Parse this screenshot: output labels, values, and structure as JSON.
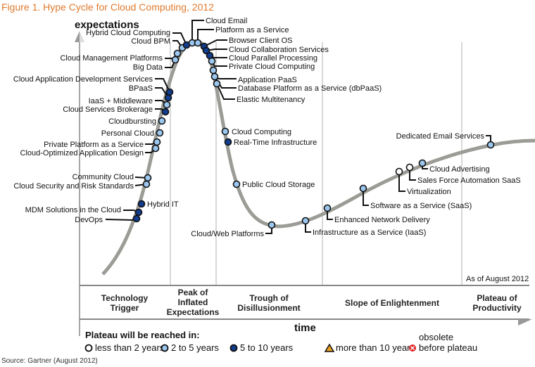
{
  "title": "Figure 1. Hype Cycle for Cloud Computing, 2012",
  "source": "Source: Gartner (August 2012)",
  "colors": {
    "title": "#e07a2e",
    "curve": "#9c9c96",
    "less_than_2": "#ffffff",
    "2_to_5": "#9cc8f0",
    "5_to_10": "#123c8c",
    "more_than_10": "#f0a020",
    "obsolete": "#e02020"
  },
  "chart_data": {
    "type": "diagram",
    "title": "Hype Cycle for Cloud Computing, 2012",
    "ylabel": "expectations",
    "xlabel": "time",
    "as_of": "As of August 2012",
    "phases": [
      {
        "lines": [
          "Technology",
          "Trigger"
        ]
      },
      {
        "lines": [
          "Peak of",
          "Inflated",
          "Expectations"
        ]
      },
      {
        "lines": [
          "Trough of",
          "Disillusionment"
        ]
      },
      {
        "lines": [
          "Slope of Enlightenment"
        ]
      },
      {
        "lines": [
          "Plateau of",
          "Productivity"
        ]
      }
    ],
    "legend": {
      "title": "Plateau will be reached in:",
      "items": [
        {
          "key": "less_than_2",
          "label": "less than 2 years",
          "shape": "circle"
        },
        {
          "key": "2_to_5",
          "label": "2 to 5 years",
          "shape": "circle"
        },
        {
          "key": "5_to_10",
          "label": "5 to 10 years",
          "shape": "circle"
        },
        {
          "key": "more_than_10",
          "label": "more than 10 years",
          "shape": "triangle"
        },
        {
          "key": "obsolete",
          "label_lines": [
            "obsolete",
            "before plateau"
          ],
          "shape": "x-circle"
        }
      ]
    },
    "technologies": [
      {
        "name": "DevOps",
        "plateau": "5_to_10",
        "phase": "Technology Trigger"
      },
      {
        "name": "MDM Solutions in the Cloud",
        "plateau": "5_to_10",
        "phase": "Technology Trigger"
      },
      {
        "name": "Hybrid IT",
        "plateau": "5_to_10",
        "phase": "Technology Trigger"
      },
      {
        "name": "Cloud Security and Risk Standards",
        "plateau": "2_to_5",
        "phase": "Technology Trigger"
      },
      {
        "name": "Community Cloud",
        "plateau": "2_to_5",
        "phase": "Technology Trigger"
      },
      {
        "name": "Cloud-Optimized Application Design",
        "plateau": "2_to_5",
        "phase": "Technology Trigger"
      },
      {
        "name": "Private Platform as a Service",
        "plateau": "2_to_5",
        "phase": "Technology Trigger"
      },
      {
        "name": "Personal Cloud",
        "plateau": "2_to_5",
        "phase": "Technology Trigger"
      },
      {
        "name": "Cloudbursting",
        "plateau": "2_to_5",
        "phase": "Technology Trigger"
      },
      {
        "name": "Cloud Services Brokerage",
        "plateau": "5_to_10",
        "phase": "Technology Trigger"
      },
      {
        "name": "IaaS + Middleware",
        "plateau": "2_to_5",
        "phase": "Technology Trigger"
      },
      {
        "name": "BPaaS",
        "plateau": "5_to_10",
        "phase": "Technology Trigger"
      },
      {
        "name": "Cloud Application Development Services",
        "plateau": "5_to_10",
        "phase": "Technology Trigger"
      },
      {
        "name": "Big Data",
        "plateau": "2_to_5",
        "phase": "Peak of Inflated Expectations"
      },
      {
        "name": "Cloud Management Platforms",
        "plateau": "2_to_5",
        "phase": "Peak of Inflated Expectations"
      },
      {
        "name": "Cloud BPM",
        "plateau": "2_to_5",
        "phase": "Peak of Inflated Expectations"
      },
      {
        "name": "Hybrid Cloud Computing",
        "plateau": "5_to_10",
        "phase": "Peak of Inflated Expectations"
      },
      {
        "name": "Cloud Email",
        "plateau": "2_to_5",
        "phase": "Peak of Inflated Expectations"
      },
      {
        "name": "Platform as a Service",
        "plateau": "2_to_5",
        "phase": "Peak of Inflated Expectations"
      },
      {
        "name": "Browser Client OS",
        "plateau": "5_to_10",
        "phase": "Peak of Inflated Expectations"
      },
      {
        "name": "Cloud Collaboration Services",
        "plateau": "5_to_10",
        "phase": "Peak of Inflated Expectations"
      },
      {
        "name": "Cloud Parallel Processing",
        "plateau": "5_to_10",
        "phase": "Peak of Inflated Expectations"
      },
      {
        "name": "Private Cloud Computing",
        "plateau": "2_to_5",
        "phase": "Peak of Inflated Expectations"
      },
      {
        "name": "Application PaaS",
        "plateau": "2_to_5",
        "phase": "Peak of Inflated Expectations"
      },
      {
        "name": "Database Platform as a Service (dbPaaS)",
        "plateau": "2_to_5",
        "phase": "Peak of Inflated Expectations"
      },
      {
        "name": "Elastic Multitenancy",
        "plateau": "2_to_5",
        "phase": "Peak of Inflated Expectations"
      },
      {
        "name": "Cloud Computing",
        "plateau": "2_to_5",
        "phase": "Trough of Disillusionment"
      },
      {
        "name": "Real-Time Infrastructure",
        "plateau": "5_to_10",
        "phase": "Trough of Disillusionment"
      },
      {
        "name": "Public Cloud Storage",
        "plateau": "2_to_5",
        "phase": "Trough of Disillusionment"
      },
      {
        "name": "Cloud/Web Platforms",
        "plateau": "2_to_5",
        "phase": "Trough of Disillusionment"
      },
      {
        "name": "Infrastructure as a Service (IaaS)",
        "plateau": "2_to_5",
        "phase": "Trough of Disillusionment"
      },
      {
        "name": "Enhanced Network Delivery",
        "plateau": "2_to_5",
        "phase": "Slope of Enlightenment"
      },
      {
        "name": "Software as a Service (SaaS)",
        "plateau": "2_to_5",
        "phase": "Slope of Enlightenment"
      },
      {
        "name": "Virtualization",
        "plateau": "less_than_2",
        "phase": "Slope of Enlightenment"
      },
      {
        "name": "Sales Force Automation SaaS",
        "plateau": "less_than_2",
        "phase": "Slope of Enlightenment"
      },
      {
        "name": "Cloud Advertising",
        "plateau": "2_to_5",
        "phase": "Slope of Enlightenment"
      },
      {
        "name": "Dedicated Email Services",
        "plateau": "2_to_5",
        "phase": "Plateau of Productivity"
      }
    ]
  }
}
